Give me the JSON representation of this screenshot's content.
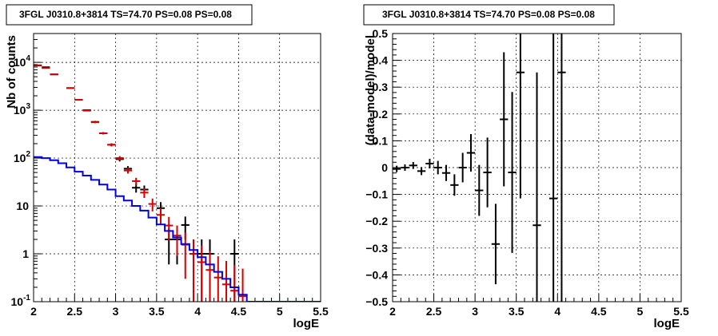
{
  "chart_data": [
    {
      "type": "step",
      "title": "3FGL J0310.8+3814 TS=74.70 PS=0.08 PS=0.08",
      "xlabel": "logE",
      "ylabel": "Nb of counts",
      "xlim": [
        2,
        5.5
      ],
      "ylim": [
        0.1,
        40000
      ],
      "yscale": "log",
      "grid": true,
      "x_ticks": [
        "2",
        "2.5",
        "3",
        "3.5",
        "4",
        "4.5",
        "5",
        "5.5"
      ],
      "y_ticks": [
        "10^-1",
        "1",
        "10",
        "10^2",
        "10^3",
        "10^4"
      ],
      "series": [
        {
          "color": "#000000",
          "style": "error-cross",
          "points": [
            {
              "x": 2.05,
              "y": 8600,
              "err": 95
            },
            {
              "x": 2.15,
              "y": 7900,
              "err": 90
            },
            {
              "x": 2.25,
              "y": 5600,
              "err": 75
            },
            {
              "x": 2.45,
              "y": 2900,
              "err": 55
            },
            {
              "x": 2.55,
              "y": 1650,
              "err": 40
            },
            {
              "x": 2.65,
              "y": 1000,
              "err": 32
            },
            {
              "x": 2.75,
              "y": 570,
              "err": 24
            },
            {
              "x": 2.85,
              "y": 330,
              "err": 18
            },
            {
              "x": 2.95,
              "y": 190,
              "err": 14
            },
            {
              "x": 3.05,
              "y": 95,
              "err": 10
            },
            {
              "x": 3.15,
              "y": 60,
              "err": 8
            },
            {
              "x": 3.25,
              "y": 24,
              "err": 5
            },
            {
              "x": 3.35,
              "y": 22,
              "err": 4.7
            },
            {
              "x": 3.55,
              "y": 9,
              "err": 3
            },
            {
              "x": 3.65,
              "y": 2,
              "err": 1.4
            },
            {
              "x": 3.75,
              "y": 2,
              "err": 1.4
            },
            {
              "x": 3.85,
              "y": 4,
              "err": 2
            },
            {
              "x": 3.95,
              "y": 1,
              "err": 1
            },
            {
              "x": 4.05,
              "y": 1,
              "err": 1
            },
            {
              "x": 4.15,
              "y": 1,
              "err": 1
            },
            {
              "x": 4.45,
              "y": 1,
              "err": 1
            }
          ]
        },
        {
          "color": "#d40000",
          "style": "error-cross",
          "points": [
            {
              "x": 2.05,
              "y": 8700,
              "err": 95
            },
            {
              "x": 2.15,
              "y": 7600,
              "err": 90
            },
            {
              "x": 2.25,
              "y": 5600,
              "err": 75
            },
            {
              "x": 2.45,
              "y": 2900,
              "err": 55
            },
            {
              "x": 2.55,
              "y": 1650,
              "err": 40
            },
            {
              "x": 2.65,
              "y": 980,
              "err": 32
            },
            {
              "x": 2.75,
              "y": 560,
              "err": 24
            },
            {
              "x": 2.85,
              "y": 330,
              "err": 18
            },
            {
              "x": 2.95,
              "y": 190,
              "err": 14
            },
            {
              "x": 3.05,
              "y": 100,
              "err": 10
            },
            {
              "x": 3.15,
              "y": 55,
              "err": 7.5
            },
            {
              "x": 3.25,
              "y": 33,
              "err": 5.7
            },
            {
              "x": 3.35,
              "y": 19,
              "err": 4.3
            },
            {
              "x": 3.45,
              "y": 11,
              "err": 3.3
            },
            {
              "x": 3.55,
              "y": 6.5,
              "err": 2.5
            },
            {
              "x": 3.65,
              "y": 3.9,
              "err": 2.0
            },
            {
              "x": 3.75,
              "y": 2.4,
              "err": 1.5
            },
            {
              "x": 3.85,
              "y": 1.55,
              "err": 1.25
            },
            {
              "x": 3.95,
              "y": 1.0,
              "err": 1.0
            },
            {
              "x": 4.05,
              "y": 0.67,
              "err": 0.82
            },
            {
              "x": 4.15,
              "y": 0.46,
              "err": 0.68
            },
            {
              "x": 4.25,
              "y": 0.32,
              "err": 0.57
            },
            {
              "x": 4.35,
              "y": 0.23,
              "err": 0.48
            },
            {
              "x": 4.45,
              "y": 0.17,
              "err": 0.41
            },
            {
              "x": 4.55,
              "y": 0.13,
              "err": 0.36
            }
          ]
        },
        {
          "color": "#0000e0",
          "style": "step",
          "bins": [
            2.0,
            2.1,
            2.2,
            2.3,
            2.4,
            2.5,
            2.6,
            2.7,
            2.8,
            2.9,
            3.0,
            3.1,
            3.2,
            3.3,
            3.4,
            3.5,
            3.6,
            3.7,
            3.8,
            3.9,
            4.0,
            4.1,
            4.2,
            4.3,
            4.4,
            4.5,
            4.6,
            5.5
          ],
          "values": [
            105,
            100,
            90,
            78,
            64,
            52,
            43,
            35,
            28,
            22,
            16,
            13,
            10,
            8,
            5.7,
            4.1,
            3.0,
            2.2,
            1.6,
            1.2,
            0.85,
            0.6,
            0.42,
            0.3,
            0.2,
            0.14,
            0.1
          ]
        }
      ]
    },
    {
      "type": "scatter",
      "title": "3FGL J0310.8+3814 TS=74.70 PS=0.08 PS=0.08",
      "xlabel": "logE",
      "ylabel": "(data-model)/model",
      "xlim": [
        2,
        5.5
      ],
      "ylim": [
        -0.5,
        0.5
      ],
      "grid": true,
      "x_ticks": [
        "2",
        "2.5",
        "3",
        "3.5",
        "4",
        "4.5",
        "5",
        "5.5"
      ],
      "y_ticks": [
        "−0.5",
        "−0.4",
        "−0.3",
        "−0.2",
        "−0.1",
        "0",
        "0.1",
        "0.2",
        "0.3",
        "0.4",
        "0.5"
      ],
      "series": [
        {
          "color": "#000000",
          "style": "error-cross",
          "points": [
            {
              "x": 2.05,
              "y": -0.005,
              "err": 0.012
            },
            {
              "x": 2.15,
              "y": 0.0,
              "err": 0.012
            },
            {
              "x": 2.25,
              "y": 0.008,
              "err": 0.013
            },
            {
              "x": 2.35,
              "y": -0.013,
              "err": 0.015
            },
            {
              "x": 2.45,
              "y": 0.015,
              "err": 0.018
            },
            {
              "x": 2.55,
              "y": 0.0,
              "err": 0.025
            },
            {
              "x": 2.65,
              "y": -0.02,
              "err": 0.03
            },
            {
              "x": 2.75,
              "y": -0.065,
              "err": 0.04
            },
            {
              "x": 2.85,
              "y": 0.0,
              "err": 0.055
            },
            {
              "x": 2.95,
              "y": 0.055,
              "err": 0.07
            },
            {
              "x": 3.05,
              "y": -0.085,
              "err": 0.095
            },
            {
              "x": 3.15,
              "y": -0.018,
              "err": 0.13
            },
            {
              "x": 3.25,
              "y": -0.285,
              "err": 0.15
            },
            {
              "x": 3.35,
              "y": 0.18,
              "err": 0.25
            },
            {
              "x": 3.45,
              "y": -0.018,
              "err": 0.3
            },
            {
              "x": 3.55,
              "y": 0.355,
              "err": 0.47
            },
            {
              "x": 3.75,
              "y": -0.215,
              "err": 0.57
            },
            {
              "x": 3.95,
              "y": -0.115,
              "err": 0.9
            },
            {
              "x": 4.05,
              "y": 0.355,
              "err": 1.2
            }
          ]
        }
      ]
    }
  ]
}
